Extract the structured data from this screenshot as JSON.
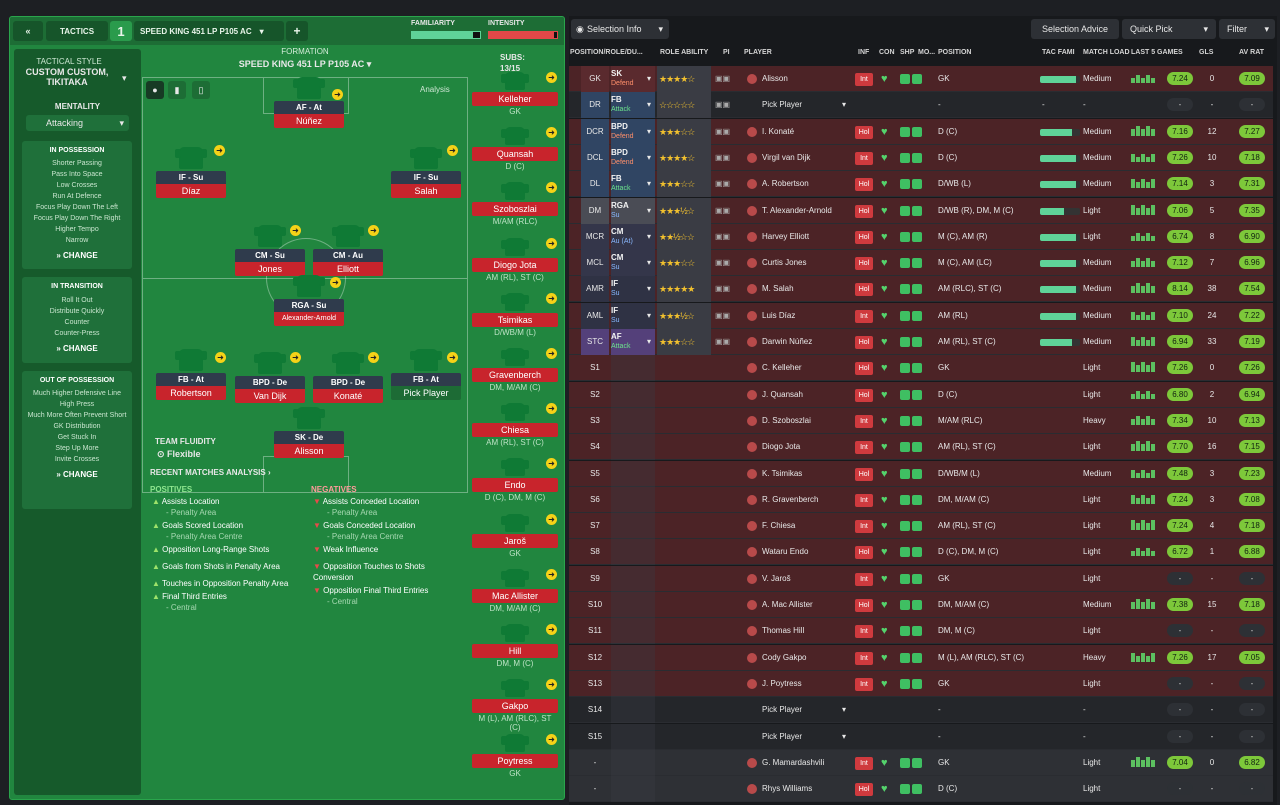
{
  "topbar": {
    "back": "«",
    "tactics": "TACTICS",
    "slot": "1",
    "tactic_name": "SPEED KING 451 LP P105 AC",
    "add": "+",
    "familiarity": "FAMILIARITY",
    "intensity": "INTENSITY"
  },
  "sidebar": {
    "style_label": "TACTICAL STYLE",
    "style_value": "CUSTOM CUSTOM, TIKITAKA",
    "mentality_label": "MENTALITY",
    "mentality_value": "Attacking",
    "in_possession": {
      "title": "IN POSSESSION",
      "items": [
        "Shorter Passing",
        "Pass Into Space",
        "Low Crosses",
        "Run At Defence",
        "Focus Play Down The Left",
        "Focus Play Down The Right",
        "Higher Tempo",
        "Narrow"
      ]
    },
    "in_transition": {
      "title": "IN TRANSITION",
      "items": [
        "Roll It Out",
        "Distribute Quickly",
        "Counter",
        "Counter-Press"
      ]
    },
    "out_possession": {
      "title": "OUT OF POSSESSION",
      "items": [
        "Much Higher Defensive Line",
        "High Press",
        "Much More Often Prevent Short GK Distribution",
        "Get Stuck In",
        "Step Up More",
        "Invite Crosses"
      ]
    },
    "change": "CHANGE"
  },
  "formation": {
    "label": "FORMATION",
    "name": "SPEED KING 451 LP P105 AC",
    "analysis": "Analysis",
    "subs_label": "SUBS:",
    "subs_count": "13/15",
    "fluidity_label": "TEAM FLUIDITY",
    "fluidity_value": "Flexible"
  },
  "pitch_players": [
    {
      "role": "AF - At",
      "name": "Núñez",
      "cls": "at"
    },
    {
      "role": "IF - Su",
      "name": "Díaz",
      "cls": "su"
    },
    {
      "role": "IF - Su",
      "name": "Salah",
      "cls": "su"
    },
    {
      "role": "CM - Su",
      "name": "Jones",
      "cls": "su"
    },
    {
      "role": "CM - Au",
      "name": "Elliott",
      "cls": "at"
    },
    {
      "role": "RGA - Su",
      "name": "Alexander-Arnold",
      "cls": "su"
    },
    {
      "role": "FB - At",
      "name": "Robertson",
      "cls": "at"
    },
    {
      "role": "BPD - De",
      "name": "Van Dijk",
      "cls": "de"
    },
    {
      "role": "BPD - De",
      "name": "Konaté",
      "cls": "de"
    },
    {
      "role": "FB - At",
      "name": "Pick Player",
      "cls": "at"
    },
    {
      "role": "SK - De",
      "name": "Alisson",
      "cls": "de"
    }
  ],
  "subs": [
    {
      "name": "Kelleher",
      "pos": "GK"
    },
    {
      "name": "Quansah",
      "pos": "D (C)"
    },
    {
      "name": "Szoboszlai",
      "pos": "M/AM (RLC)"
    },
    {
      "name": "Diogo Jota",
      "pos": "AM (RL), ST (C)"
    },
    {
      "name": "Tsimikas",
      "pos": "D/WB/M (L)"
    },
    {
      "name": "Gravenberch",
      "pos": "DM, M/AM (C)"
    },
    {
      "name": "Chiesa",
      "pos": "AM (RL), ST (C)"
    },
    {
      "name": "Endo",
      "pos": "D (C), DM, M (C)"
    },
    {
      "name": "Jaroš",
      "pos": "GK"
    },
    {
      "name": "Mac Allister",
      "pos": "DM, M/AM (C)"
    },
    {
      "name": "Hill",
      "pos": "DM, M (C)"
    },
    {
      "name": "Gakpo",
      "pos": "M (L), AM (RLC), ST (C)"
    },
    {
      "name": "Poytress",
      "pos": "GK"
    }
  ],
  "analysis": {
    "title": "RECENT MATCHES ANALYSIS ›",
    "positives_label": "POSITIVES",
    "negatives_label": "NEGATIVES",
    "positives": [
      {
        "t": "Assists Location",
        "s": "- Penalty Area"
      },
      {
        "t": "Goals Scored Location",
        "s": "- Penalty Area Centre"
      },
      {
        "t": "Opposition Long-Range Shots",
        "s": ""
      },
      {
        "t": "Goals from Shots in Penalty Area",
        "s": ""
      },
      {
        "t": "Touches in Opposition Penalty Area",
        "s": ""
      },
      {
        "t": "Final Third Entries",
        "s": "- Central"
      }
    ],
    "negatives": [
      {
        "t": "Assists Conceded Location",
        "s": "- Penalty Area"
      },
      {
        "t": "Goals Conceded Location",
        "s": "- Penalty Area Centre"
      },
      {
        "t": "Weak Influence",
        "s": ""
      },
      {
        "t": "Opposition Touches to Shots Conversion",
        "s": ""
      },
      {
        "t": "Opposition Final Third Entries",
        "s": "- Central"
      }
    ]
  },
  "toolbar": {
    "selection_info": "Selection Info",
    "selection_advice": "Selection Advice",
    "quick_pick": "Quick Pick",
    "filter": "Filter"
  },
  "columns": [
    "POSITION/ROLE/DU...",
    "ROLE ABILITY",
    "PI",
    "PLAYER",
    "INF",
    "CON",
    "SHP",
    "MO...",
    "POSITION",
    "TAC FAMI",
    "MATCH LOAD",
    "LAST 5 GAMES",
    "GLS",
    "AV RAT"
  ],
  "rows": [
    {
      "pos": "GK",
      "role": "SK",
      "duty": "Defend",
      "stars": "★★★★☆",
      "player": "Alisson",
      "inf": "Int",
      "position": "GK",
      "load": "Medium",
      "last5": "7.24",
      "gls": "0",
      "av": "7.09",
      "fam": 0.9
    },
    {
      "pos": "DR",
      "role": "FB",
      "duty": "Attack",
      "stars": "☆☆☆☆☆",
      "player": "Pick Player",
      "inf": "",
      "position": "-",
      "load": "-",
      "last5": "-",
      "gls": "-",
      "av": "-",
      "fam": 0
    },
    {
      "pos": "DCR",
      "role": "BPD",
      "duty": "Defend",
      "stars": "★★★☆☆",
      "player": "I. Konaté",
      "inf": "Hol",
      "position": "D (C)",
      "load": "Medium",
      "last5": "7.16",
      "gls": "12",
      "av": "7.27",
      "fam": 0.8
    },
    {
      "pos": "DCL",
      "role": "BPD",
      "duty": "Defend",
      "stars": "★★★★☆",
      "player": "Virgil van Dijk",
      "inf": "Int",
      "position": "D (C)",
      "load": "Medium",
      "last5": "7.26",
      "gls": "10",
      "av": "7.18",
      "fam": 0.9
    },
    {
      "pos": "DL",
      "role": "FB",
      "duty": "Attack",
      "stars": "★★★☆☆",
      "player": "A. Robertson",
      "inf": "Hol",
      "position": "D/WB (L)",
      "load": "Medium",
      "last5": "7.14",
      "gls": "3",
      "av": "7.31",
      "fam": 0.9
    },
    {
      "pos": "DM",
      "role": "RGA",
      "duty": "Su",
      "stars": "★★★½☆",
      "player": "T. Alexander-Arnold",
      "inf": "Hol",
      "position": "D/WB (R), DM, M (C)",
      "load": "Light",
      "last5": "7.06",
      "gls": "5",
      "av": "7.35",
      "fam": 0.6
    },
    {
      "pos": "MCR",
      "role": "CM",
      "duty": "Au (At)",
      "stars": "★★½☆☆",
      "player": "Harvey Elliott",
      "inf": "Hol",
      "position": "M (C), AM (R)",
      "load": "Light",
      "last5": "6.74",
      "gls": "8",
      "av": "6.90",
      "fam": 0.9
    },
    {
      "pos": "MCL",
      "role": "CM",
      "duty": "Su",
      "stars": "★★★☆☆",
      "player": "Curtis Jones",
      "inf": "Hol",
      "position": "M (C), AM (LC)",
      "load": "Medium",
      "last5": "7.12",
      "gls": "7",
      "av": "6.96",
      "fam": 0.9
    },
    {
      "pos": "AMR",
      "role": "IF",
      "duty": "Su",
      "stars": "★★★★★",
      "player": "M. Salah",
      "inf": "Hol",
      "position": "AM (RLC), ST (C)",
      "load": "Medium",
      "last5": "8.14",
      "gls": "38",
      "av": "7.54",
      "fam": 0.9
    },
    {
      "pos": "AML",
      "role": "IF",
      "duty": "Su",
      "stars": "★★★½☆",
      "player": "Luis Díaz",
      "inf": "Int",
      "position": "AM (RL)",
      "load": "Medium",
      "last5": "7.10",
      "gls": "24",
      "av": "7.22",
      "fam": 0.9
    },
    {
      "pos": "STC",
      "role": "AF",
      "duty": "Attack",
      "stars": "★★★☆☆",
      "player": "Darwin Núñez",
      "inf": "Hol",
      "position": "AM (RL), ST (C)",
      "load": "Medium",
      "last5": "6.94",
      "gls": "33",
      "av": "7.19",
      "fam": 0.8
    },
    {
      "pos": "S1",
      "role": "",
      "duty": "",
      "stars": "",
      "player": "C. Kelleher",
      "inf": "Hol",
      "position": "GK",
      "load": "Light",
      "last5": "7.26",
      "gls": "0",
      "av": "7.26",
      "fam": -1
    },
    {
      "pos": "S2",
      "role": "",
      "duty": "",
      "stars": "",
      "player": "J. Quansah",
      "inf": "Hol",
      "position": "D (C)",
      "load": "Light",
      "last5": "6.80",
      "gls": "2",
      "av": "6.94",
      "fam": -1
    },
    {
      "pos": "S3",
      "role": "",
      "duty": "",
      "stars": "",
      "player": "D. Szoboszlai",
      "inf": "Int",
      "position": "M/AM (RLC)",
      "load": "Heavy",
      "last5": "7.34",
      "gls": "10",
      "av": "7.13",
      "fam": -1
    },
    {
      "pos": "S4",
      "role": "",
      "duty": "",
      "stars": "",
      "player": "Diogo Jota",
      "inf": "Int",
      "position": "AM (RL), ST (C)",
      "load": "Light",
      "last5": "7.70",
      "gls": "16",
      "av": "7.15",
      "fam": -1
    },
    {
      "pos": "S5",
      "role": "",
      "duty": "",
      "stars": "",
      "player": "K. Tsimikas",
      "inf": "Hol",
      "position": "D/WB/M (L)",
      "load": "Medium",
      "last5": "7.48",
      "gls": "3",
      "av": "7.23",
      "fam": -1
    },
    {
      "pos": "S6",
      "role": "",
      "duty": "",
      "stars": "",
      "player": "R. Gravenberch",
      "inf": "Int",
      "position": "DM, M/AM (C)",
      "load": "Light",
      "last5": "7.24",
      "gls": "3",
      "av": "7.08",
      "fam": -1
    },
    {
      "pos": "S7",
      "role": "",
      "duty": "",
      "stars": "",
      "player": "F. Chiesa",
      "inf": "Int",
      "position": "AM (RL), ST (C)",
      "load": "Light",
      "last5": "7.24",
      "gls": "4",
      "av": "7.18",
      "fam": -1
    },
    {
      "pos": "S8",
      "role": "",
      "duty": "",
      "stars": "",
      "player": "Wataru Endo",
      "inf": "Hol",
      "position": "D (C), DM, M (C)",
      "load": "Light",
      "last5": "6.72",
      "gls": "1",
      "av": "6.88",
      "fam": -1
    },
    {
      "pos": "S9",
      "role": "",
      "duty": "",
      "stars": "",
      "player": "V. Jaroš",
      "inf": "Int",
      "position": "GK",
      "load": "Light",
      "last5": "-",
      "gls": "-",
      "av": "-",
      "fam": -1
    },
    {
      "pos": "S10",
      "role": "",
      "duty": "",
      "stars": "",
      "player": "A. Mac Allister",
      "inf": "Hol",
      "position": "DM, M/AM (C)",
      "load": "Medium",
      "last5": "7.38",
      "gls": "15",
      "av": "7.18",
      "fam": -1
    },
    {
      "pos": "S11",
      "role": "",
      "duty": "",
      "stars": "",
      "player": "Thomas Hill",
      "inf": "Int",
      "position": "DM, M (C)",
      "load": "Light",
      "last5": "-",
      "gls": "-",
      "av": "-",
      "fam": -1
    },
    {
      "pos": "S12",
      "role": "",
      "duty": "",
      "stars": "",
      "player": "Cody Gakpo",
      "inf": "Int",
      "position": "M (L), AM (RLC), ST (C)",
      "load": "Heavy",
      "last5": "7.26",
      "gls": "17",
      "av": "7.05",
      "fam": -1
    },
    {
      "pos": "S13",
      "role": "",
      "duty": "",
      "stars": "",
      "player": "J. Poytress",
      "inf": "Int",
      "position": "GK",
      "load": "Light",
      "last5": "-",
      "gls": "-",
      "av": "-",
      "fam": -1
    },
    {
      "pos": "S14",
      "role": "",
      "duty": "",
      "stars": "",
      "player": "Pick Player",
      "inf": "",
      "position": "-",
      "load": "-",
      "last5": "-",
      "gls": "-",
      "av": "-",
      "fam": -1
    },
    {
      "pos": "S15",
      "role": "",
      "duty": "",
      "stars": "",
      "player": "Pick Player",
      "inf": "",
      "position": "-",
      "load": "-",
      "last5": "-",
      "gls": "-",
      "av": "-",
      "fam": -1
    },
    {
      "pos": "-",
      "role": "",
      "duty": "",
      "stars": "",
      "player": "G. Mamardashvili",
      "inf": "Int",
      "position": "GK",
      "load": "Light",
      "last5": "7.04",
      "gls": "0",
      "av": "6.82",
      "fam": -1
    },
    {
      "pos": "-",
      "role": "",
      "duty": "",
      "stars": "",
      "player": "Rhys Williams",
      "inf": "Hol",
      "position": "D (C)",
      "load": "Light",
      "last5": "-",
      "gls": "-",
      "av": "-",
      "fam": -1
    }
  ]
}
